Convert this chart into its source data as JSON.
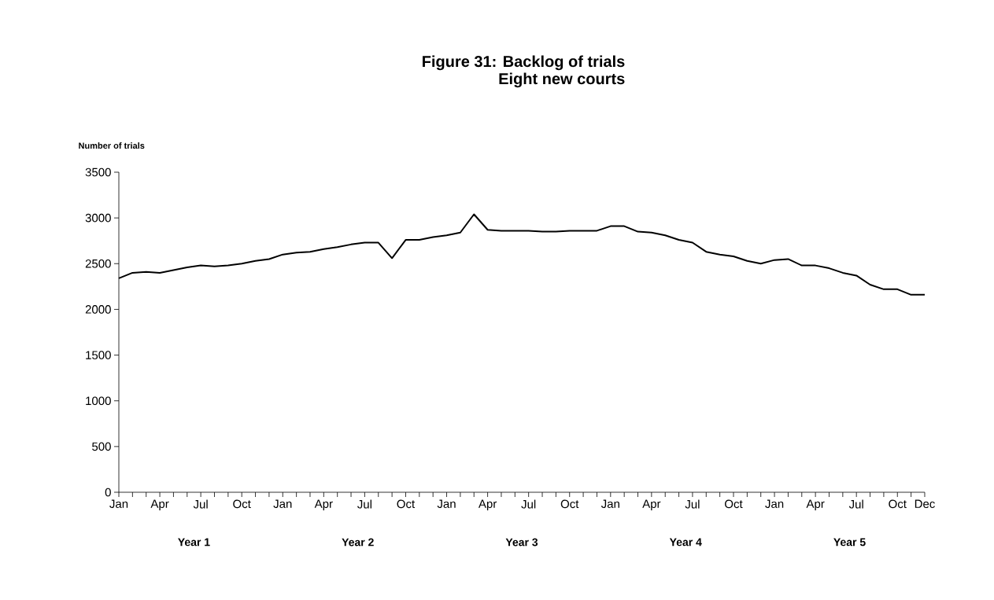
{
  "chart_data": {
    "type": "line",
    "title": "Figure 31: Backlog of trials",
    "subtitle": "Eight new courts",
    "ylabel": "Number of trials",
    "categories": [
      "Jan",
      null,
      null,
      "Apr",
      null,
      null,
      "Jul",
      null,
      null,
      "Oct",
      null,
      null,
      "Jan",
      null,
      null,
      "Apr",
      null,
      null,
      "Jul",
      null,
      null,
      "Oct",
      null,
      null,
      "Jan",
      null,
      null,
      "Apr",
      null,
      null,
      "Jul",
      null,
      null,
      "Oct",
      null,
      null,
      "Jan",
      null,
      null,
      "Apr",
      null,
      null,
      "Jul",
      null,
      null,
      "Oct",
      null,
      null,
      "Jan",
      null,
      null,
      "Apr",
      null,
      null,
      "Jul",
      null,
      null,
      "Oct",
      null,
      "Dec"
    ],
    "series": [
      {
        "color": "#000000",
        "values": [
          2340,
          2400,
          2410,
          2400,
          2430,
          2460,
          2480,
          2470,
          2480,
          2500,
          2530,
          2550,
          2600,
          2620,
          2630,
          2660,
          2680,
          2710,
          2730,
          2730,
          2560,
          2760,
          2760,
          2790,
          2810,
          2840,
          3040,
          2870,
          2860,
          2860,
          2860,
          2850,
          2850,
          2860,
          2860,
          2860,
          2910,
          2910,
          2850,
          2840,
          2810,
          2760,
          2730,
          2630,
          2600,
          2580,
          2530,
          2500,
          2540,
          2550,
          2480,
          2480,
          2450,
          2400,
          2370,
          2270,
          2220,
          2220,
          2160,
          2160
        ]
      }
    ],
    "ylim": [
      0,
      3500
    ],
    "yticks": [
      0,
      500,
      1000,
      1500,
      2000,
      2500,
      3000,
      3500
    ],
    "line_style": "solid",
    "annotations": [
      "Year 1",
      "Year 2",
      "Year 3",
      "Year 4",
      "Year 5"
    ]
  }
}
